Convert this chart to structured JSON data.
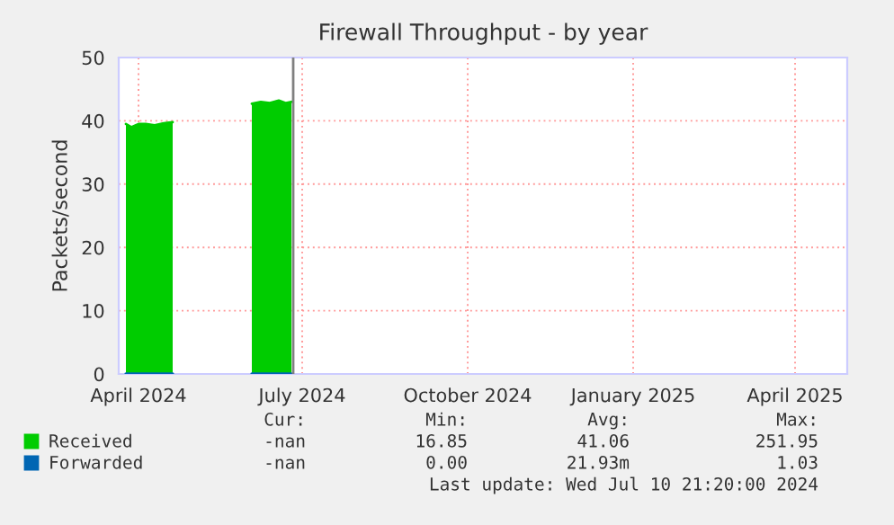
{
  "chart_data": {
    "type": "area",
    "title": "Firewall Throughput - by year",
    "ylabel": "Packets/second",
    "x": [
      "2024-03-25",
      "2024-03-28",
      "2024-04-01",
      "2024-04-05",
      "2024-04-10",
      "2024-04-15",
      "2024-04-20",
      "2024-05-10",
      "2024-06-03",
      "2024-06-08",
      "2024-06-13",
      "2024-06-18",
      "2024-06-22",
      "2024-06-25"
    ],
    "series": [
      {
        "name": "Received",
        "color": "#00cc00",
        "values": [
          39.5,
          39,
          39.5,
          39.5,
          39.3,
          39.6,
          39.8,
          null,
          42.7,
          43,
          42.8,
          43.2,
          42.8,
          43
        ]
      },
      {
        "name": "Forwarded",
        "type": "line",
        "color": "#0066b3",
        "values": [
          0,
          0,
          0,
          0,
          0,
          0,
          0,
          null,
          0,
          0,
          0,
          0,
          0,
          0
        ]
      }
    ],
    "xlim": [
      "2024-03-21",
      "2025-04-30"
    ],
    "xticks": [
      {
        "value": "2024-04-01",
        "label": "April 2024"
      },
      {
        "value": "2024-07-01",
        "label": "July 2024"
      },
      {
        "value": "2024-10-01",
        "label": "October 2024"
      },
      {
        "value": "2025-01-01",
        "label": "January 2025"
      },
      {
        "value": "2025-04-01",
        "label": "April 2025"
      }
    ],
    "ylim": [
      0,
      50
    ],
    "yticks": [
      0,
      10,
      20,
      30,
      40,
      50
    ],
    "ref_lines": [
      {
        "axis": "x",
        "value": "2024-06-26",
        "color": "#808080"
      }
    ],
    "grid": true,
    "legend": "bottom",
    "annotations": [
      "Cur:",
      "Min:",
      "Avg:",
      "Max:",
      "-nan",
      "16.85",
      "41.06",
      "251.95",
      "-nan",
      "0.00",
      "21.93m",
      "1.03",
      "Last update: Wed Jul 10 21:20:00 2024"
    ]
  }
}
